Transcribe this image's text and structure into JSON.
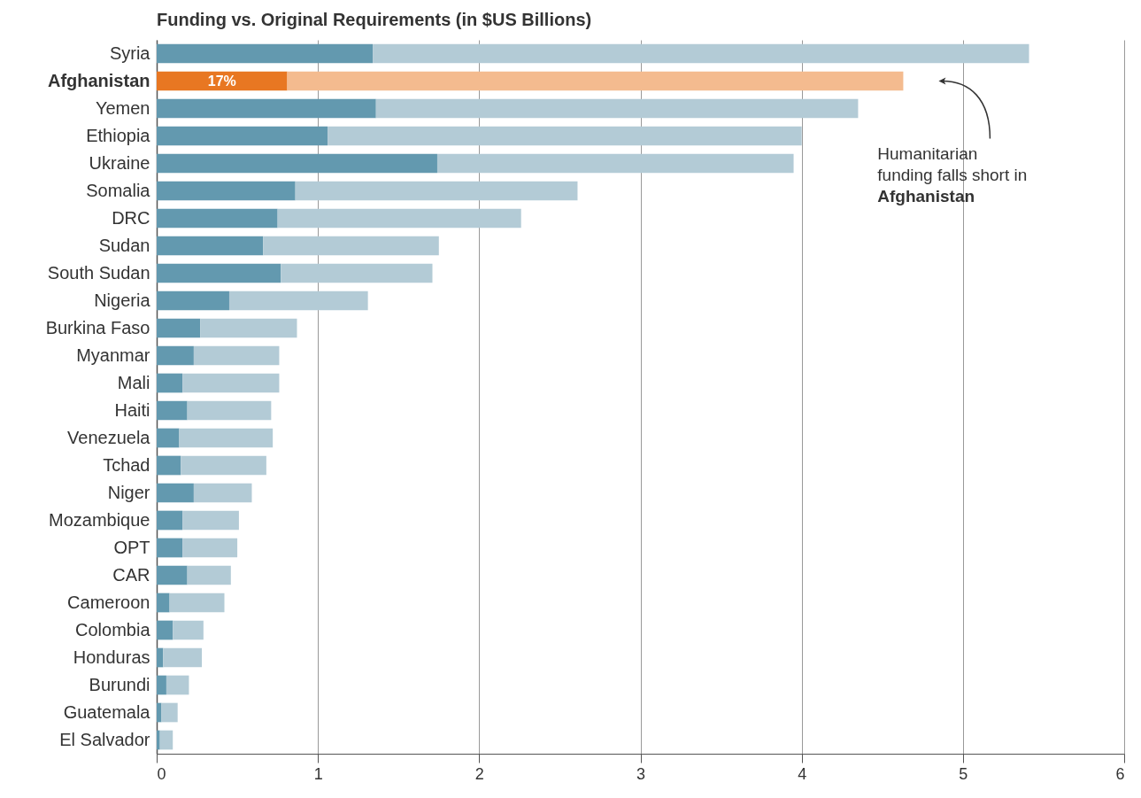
{
  "chart_data": {
    "type": "bar",
    "orientation": "horizontal",
    "stacked": true,
    "title": "Funding vs. Original Requirements (in $US Billions)",
    "categories": [
      "Syria",
      "Afghanistan",
      "Yemen",
      "Ethiopia",
      "Ukraine",
      "Somalia",
      "DRC",
      "Sudan",
      "South Sudan",
      "Nigeria",
      "Burkina Faso",
      "Myanmar",
      "Mali",
      "Haiti",
      "Venezuela",
      "Tchad",
      "Niger",
      "Mozambique",
      "OPT",
      "CAR",
      "Cameroon",
      "Colombia",
      "Honduras",
      "Burundi",
      "Guatemala",
      "El Salvador"
    ],
    "series": [
      {
        "colors": [
          "#6399af",
          "#e87722",
          "#6399af",
          "#6399af",
          "#6399af",
          "#6399af",
          "#6399af",
          "#6399af",
          "#6399af",
          "#6399af",
          "#6399af",
          "#6399af",
          "#6399af",
          "#6399af",
          "#6399af",
          "#6399af",
          "#6399af",
          "#6399af",
          "#6399af",
          "#6399af",
          "#6399af",
          "#6399af",
          "#6399af",
          "#6399af",
          "#6399af",
          "#6399af"
        ],
        "values": [
          1.34,
          0.81,
          1.36,
          1.06,
          1.74,
          0.86,
          0.75,
          0.66,
          0.77,
          0.45,
          0.27,
          0.23,
          0.16,
          0.19,
          0.14,
          0.15,
          0.23,
          0.16,
          0.16,
          0.19,
          0.08,
          0.1,
          0.04,
          0.06,
          0.03,
          0.02
        ]
      },
      {
        "colors": [
          "#b3cbd6",
          "#f4bb8f",
          "#b3cbd6",
          "#b3cbd6",
          "#b3cbd6",
          "#b3cbd6",
          "#b3cbd6",
          "#b3cbd6",
          "#b3cbd6",
          "#b3cbd6",
          "#b3cbd6",
          "#b3cbd6",
          "#b3cbd6",
          "#b3cbd6",
          "#b3cbd6",
          "#b3cbd6",
          "#b3cbd6",
          "#b3cbd6",
          "#b3cbd6",
          "#b3cbd6",
          "#b3cbd6",
          "#b3cbd6",
          "#b3cbd6",
          "#b3cbd6",
          "#b3cbd6",
          "#b3cbd6"
        ],
        "values": [
          4.07,
          3.82,
          2.99,
          2.94,
          2.21,
          1.75,
          1.51,
          1.09,
          0.94,
          0.86,
          0.6,
          0.53,
          0.6,
          0.52,
          0.58,
          0.53,
          0.36,
          0.35,
          0.34,
          0.27,
          0.34,
          0.19,
          0.24,
          0.14,
          0.1,
          0.08
        ]
      }
    ],
    "xlim": [
      0,
      6
    ],
    "xticks": [
      0,
      1,
      2,
      3,
      4,
      5,
      6
    ],
    "grid": "x",
    "annotations": [
      {
        "text": "17%",
        "x": 0.405,
        "y": "Afghanistan"
      },
      "Humanitarian funding falls short in Afghanistan"
    ]
  }
}
